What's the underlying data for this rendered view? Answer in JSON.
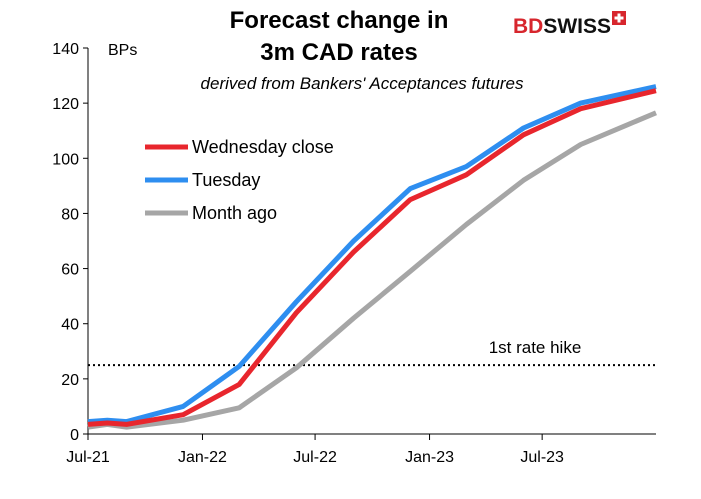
{
  "logo": {
    "text_a": "BD",
    "text_b": "SWISS",
    "color_a": "#d7262d",
    "color_b": "#111111"
  },
  "chart_data": {
    "type": "line",
    "title_line1": "Forecast change in",
    "title_line2": "3m CAD rates",
    "subtitle": "derived from Bankers' Acceptances futures",
    "ylabel": "BPs",
    "xlabel": "",
    "ylim": [
      0,
      140
    ],
    "yticks": [
      0,
      20,
      40,
      60,
      80,
      100,
      120,
      140
    ],
    "x_start": "2021-07-01",
    "x_end": "2023-12-31",
    "xticks": [
      {
        "date": "2021-07-01",
        "label": "Jul-21"
      },
      {
        "date": "2022-01-01",
        "label": "Jan-22"
      },
      {
        "date": "2022-07-01",
        "label": "Jul-22"
      },
      {
        "date": "2023-01-01",
        "label": "Jan-23"
      },
      {
        "date": "2023-07-01",
        "label": "Jul-23"
      }
    ],
    "grid": false,
    "legend_position": "upper-left",
    "series": [
      {
        "name": "Month ago",
        "color": "#a6a6a6",
        "points": [
          [
            "2021-07-01",
            2.5
          ],
          [
            "2021-08-01",
            3.5
          ],
          [
            "2021-09-01",
            2.5
          ],
          [
            "2021-12-01",
            5
          ],
          [
            "2022-03-01",
            9.5
          ],
          [
            "2022-06-01",
            24
          ],
          [
            "2022-09-01",
            42
          ],
          [
            "2022-12-01",
            59
          ],
          [
            "2023-03-01",
            76
          ],
          [
            "2023-06-01",
            92
          ],
          [
            "2023-09-01",
            105
          ],
          [
            "2023-12-31",
            116.5
          ]
        ]
      },
      {
        "name": "Tuesday",
        "color": "#2e8ef0",
        "points": [
          [
            "2021-07-01",
            4.5
          ],
          [
            "2021-08-01",
            5
          ],
          [
            "2021-09-01",
            4.5
          ],
          [
            "2021-12-01",
            10
          ],
          [
            "2022-03-01",
            24.5
          ],
          [
            "2022-06-01",
            48
          ],
          [
            "2022-09-01",
            70
          ],
          [
            "2022-12-01",
            89
          ],
          [
            "2023-03-01",
            97
          ],
          [
            "2023-06-01",
            111
          ],
          [
            "2023-09-01",
            120
          ],
          [
            "2023-12-31",
            126
          ]
        ]
      },
      {
        "name": "Wednesday close",
        "color": "#e8262d",
        "points": [
          [
            "2021-07-01",
            3.5
          ],
          [
            "2021-08-01",
            4
          ],
          [
            "2021-09-01",
            3.5
          ],
          [
            "2021-12-01",
            7
          ],
          [
            "2022-03-01",
            18
          ],
          [
            "2022-06-01",
            44
          ],
          [
            "2022-09-01",
            66
          ],
          [
            "2022-12-01",
            85
          ],
          [
            "2023-03-01",
            94
          ],
          [
            "2023-06-01",
            108.5
          ],
          [
            "2023-09-01",
            118
          ],
          [
            "2023-12-31",
            124.5
          ]
        ]
      }
    ],
    "legend_order": [
      "Wednesday close",
      "Tuesday",
      "Month ago"
    ],
    "reference_line": {
      "value": 25,
      "label": "1st rate hike",
      "style": "dotted",
      "color": "#000000"
    }
  }
}
